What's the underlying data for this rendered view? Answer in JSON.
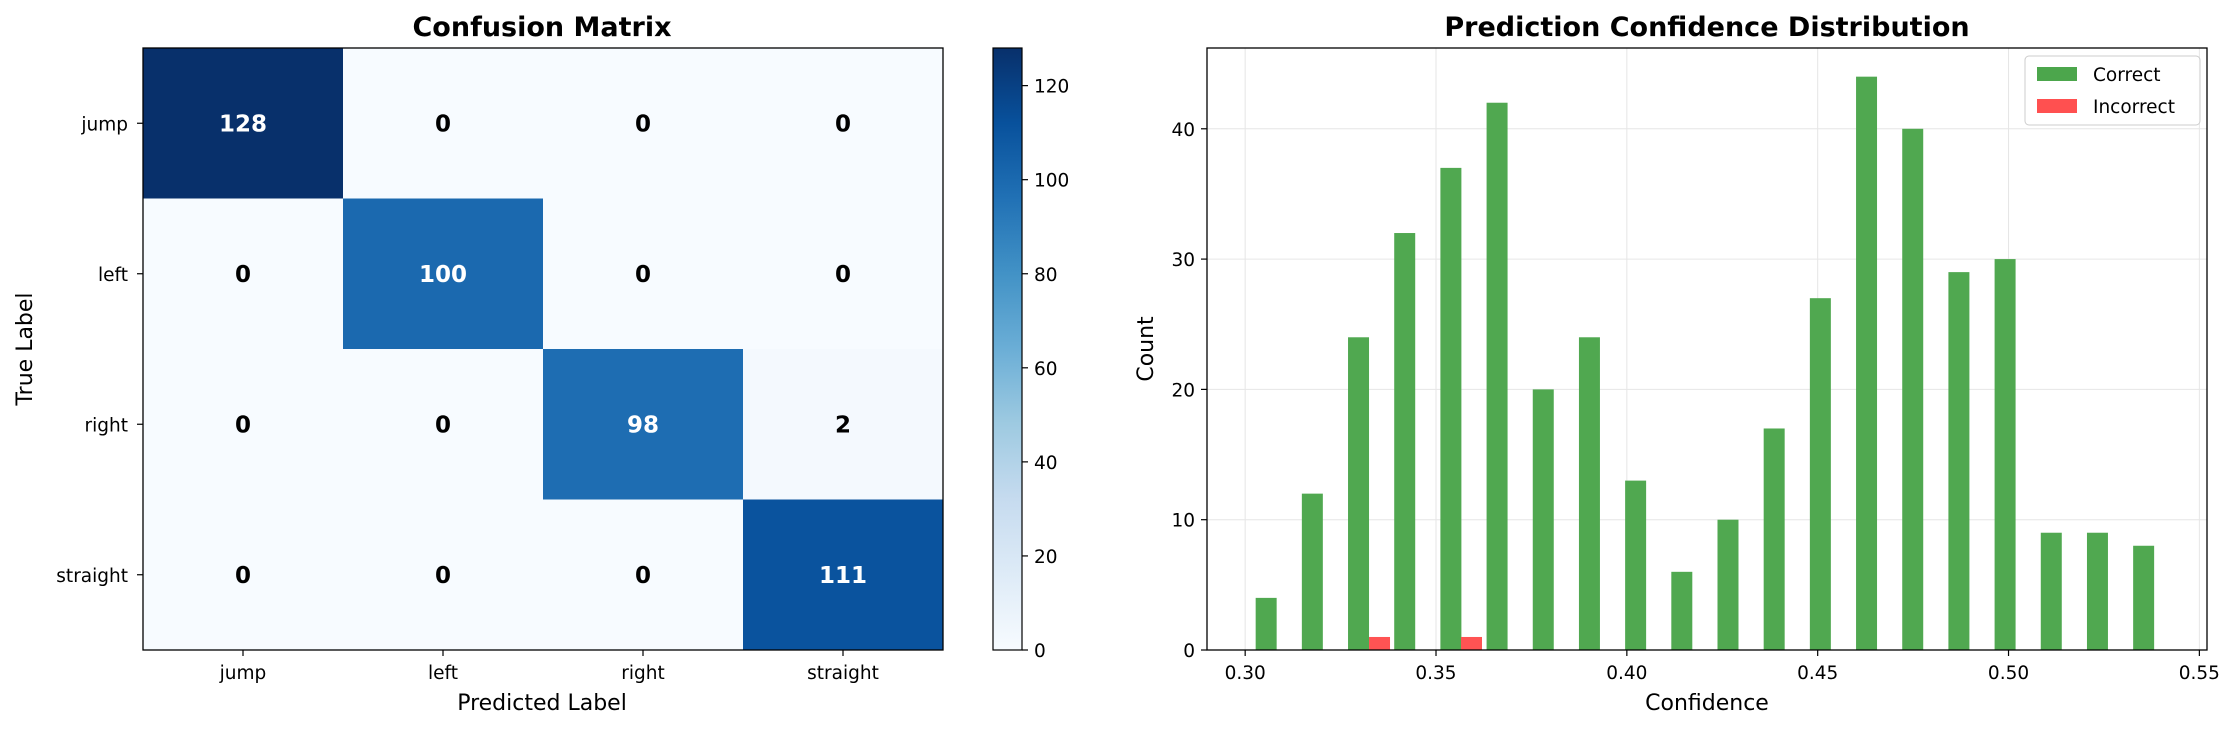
{
  "chart_data": [
    {
      "type": "heatmap",
      "title": "Confusion Matrix",
      "xlabel": "Predicted Label",
      "ylabel": "True Label",
      "x_categories": [
        "jump",
        "left",
        "right",
        "straight"
      ],
      "y_categories": [
        "jump",
        "left",
        "right",
        "straight"
      ],
      "values": [
        [
          128,
          0,
          0,
          0
        ],
        [
          0,
          100,
          0,
          0
        ],
        [
          0,
          0,
          98,
          2
        ],
        [
          0,
          0,
          0,
          111
        ]
      ],
      "colormap": "Blues",
      "colorbar_range": [
        0,
        128
      ],
      "colorbar_ticks": [
        0,
        20,
        40,
        60,
        80,
        100,
        120
      ]
    },
    {
      "type": "bar",
      "title": "Prediction Confidence Distribution",
      "xlabel": "Confidence",
      "ylabel": "Count",
      "xlim": [
        0.29,
        0.552
      ],
      "ylim": [
        0,
        46.2
      ],
      "xticks": [
        "0.30",
        "0.35",
        "0.40",
        "0.45",
        "0.50",
        "0.55"
      ],
      "yticks": [
        0,
        10,
        20,
        30,
        40
      ],
      "grid": true,
      "legend_position": "top-right",
      "series": [
        {
          "name": "Correct",
          "color": "#4ca64c",
          "x": [
            0.3055,
            0.3176,
            0.3297,
            0.3418,
            0.3539,
            0.366,
            0.3781,
            0.3902,
            0.4023,
            0.4144,
            0.4265,
            0.4386,
            0.4507,
            0.4628,
            0.4749,
            0.487,
            0.4991,
            0.5112,
            0.5233,
            0.5354
          ],
          "values": [
            4,
            12,
            24,
            32,
            37,
            42,
            20,
            24,
            13,
            6,
            10,
            17,
            27,
            44,
            40,
            29,
            30,
            9,
            9,
            8
          ]
        },
        {
          "name": "Incorrect",
          "color": "#ff5050",
          "x": [
            0.3352,
            0.3593
          ],
          "values": [
            1,
            1
          ]
        }
      ]
    }
  ]
}
